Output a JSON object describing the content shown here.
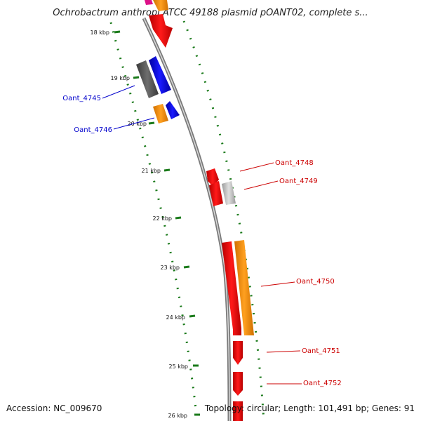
{
  "title": "Ochrobactrum anthropi ATCC 49188 plasmid pOANT02, complete s...",
  "footer": {
    "accession": "Accession: NC_009670",
    "summary": "Topology: circular; Length: 101,491 bp; Genes: 91"
  },
  "ticks": [
    "18 kbp",
    "19 kbp",
    "20 kbp",
    "21 kbp",
    "22 kbp",
    "23 kbp",
    "24 kbp",
    "25 kbp",
    "26 kbp"
  ],
  "genes": {
    "left": [
      {
        "label": "Oant_4745",
        "color": "#0000cc"
      },
      {
        "label": "Oant_4746",
        "color": "#0000cc"
      }
    ],
    "right": [
      {
        "label": "Oant_4748",
        "color": "#cc0000"
      },
      {
        "label": "Oant_4749",
        "color": "#cc0000"
      },
      {
        "label": "Oant_4750",
        "color": "#cc0000"
      },
      {
        "label": "Oant_4751",
        "color": "#cc0000"
      },
      {
        "label": "Oant_4752",
        "color": "#cc0000"
      }
    ]
  },
  "colors": {
    "backbone": "#8c8c8c",
    "tick_dots": "#1a7a1a",
    "gene_red": "#ee0000",
    "gene_blue": "#0000ee",
    "gene_orange": "#ff9900",
    "gene_gray_dark": "#555555",
    "gene_gray_light": "#c8c8c8"
  }
}
